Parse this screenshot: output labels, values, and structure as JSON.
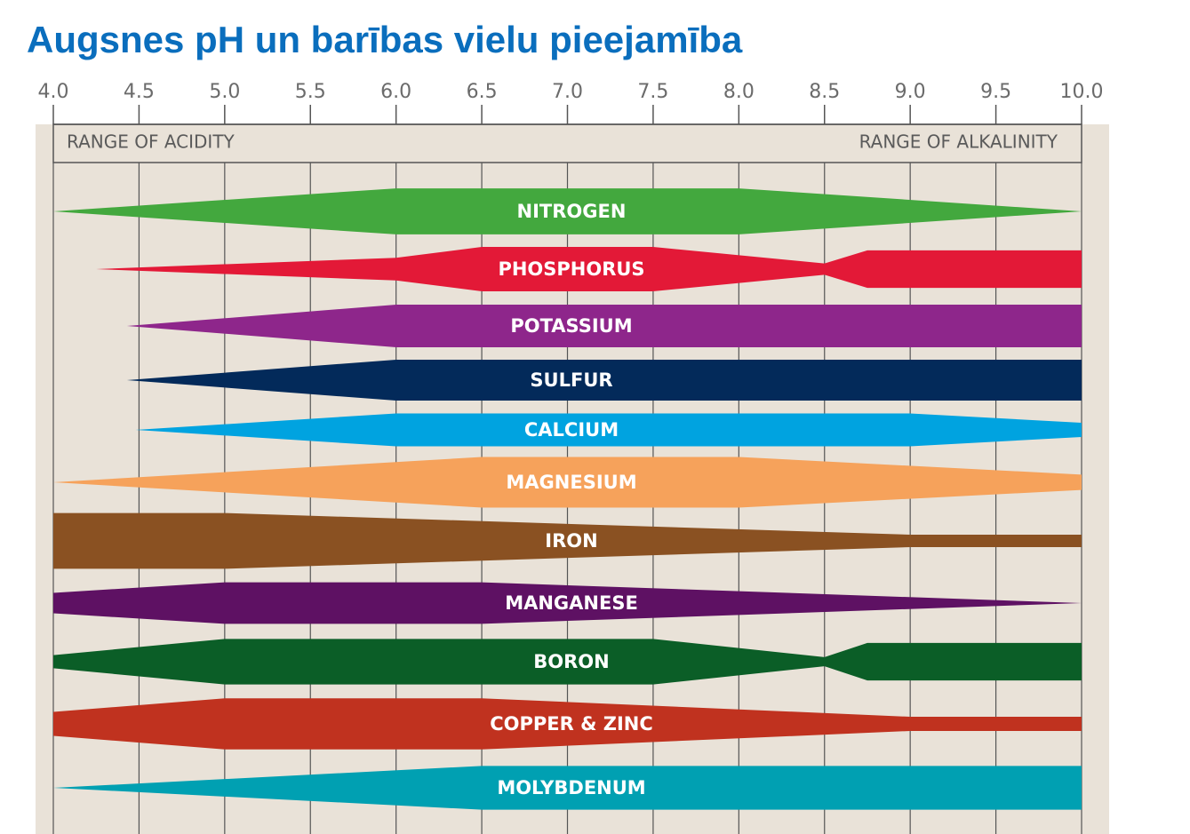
{
  "chart_data": {
    "type": "ph-availability",
    "title": "Augsnes pH un barības vielu pieejamība",
    "annotations": [
      "RANGE OF ACIDITY",
      "RANGE OF ALKALINITY"
    ],
    "xlim": [
      4,
      10
    ],
    "xticks": [
      {
        "value": 4,
        "label": "4.0"
      },
      4.5,
      {
        "value": 5,
        "label": "5.0"
      },
      5.5,
      {
        "value": 6,
        "label": "6.0"
      },
      6.5,
      {
        "value": 7,
        "label": "7.0"
      },
      7.5,
      {
        "value": 8,
        "label": "8.0"
      },
      8.5,
      {
        "value": 9,
        "label": "9.0"
      },
      9.5,
      {
        "value": 10,
        "label": "10.0"
      }
    ],
    "grid": true,
    "series": [
      {
        "name": "NITROGEN",
        "color": "#43a83e",
        "x": [
          4,
          6,
          8,
          10
        ],
        "values": [
          0,
          0.81,
          0.81,
          0
        ]
      },
      {
        "name": "PHOSPHORUS",
        "color": "#e31937",
        "x": [
          4.25,
          6,
          6.5,
          7.5,
          8.5,
          8.75,
          10
        ],
        "values": [
          0,
          0.4,
          0.78,
          0.78,
          0.2,
          0.66,
          0.66
        ]
      },
      {
        "name": "POTASSIUM",
        "color": "#8e268b",
        "x": [
          4.43,
          6,
          10
        ],
        "values": [
          0,
          0.75,
          0.75
        ]
      },
      {
        "name": "SULFUR",
        "color": "#032a5a",
        "x": [
          4.43,
          6,
          10
        ],
        "values": [
          0,
          0.72,
          0.72
        ]
      },
      {
        "name": "CALCIUM",
        "color": "#00a3e0",
        "x": [
          4.48,
          6,
          9,
          10
        ],
        "values": [
          0,
          0.58,
          0.58,
          0.25
        ]
      },
      {
        "name": "MAGNESIUM",
        "color": "#f6a25b",
        "x": [
          4,
          6.5,
          8,
          10
        ],
        "values": [
          0,
          0.89,
          0.89,
          0.27
        ]
      },
      {
        "name": "IRON",
        "color": "#8a5122",
        "x": [
          4,
          5,
          9,
          10
        ],
        "values": [
          0.98,
          0.98,
          0.22,
          0.22
        ]
      },
      {
        "name": "MANGANESE",
        "color": "#5e1163",
        "x": [
          4,
          5,
          6.5,
          10
        ],
        "values": [
          0.36,
          0.73,
          0.73,
          0
        ]
      },
      {
        "name": "BORON",
        "color": "#0b5e27",
        "x": [
          4,
          5,
          7.5,
          8.5,
          8.75,
          10
        ],
        "values": [
          0.23,
          0.8,
          0.8,
          0.16,
          0.66,
          0.66
        ]
      },
      {
        "name": "COPPER & ZINC",
        "color": "#c0321f",
        "x": [
          4,
          5,
          6.5,
          9,
          10
        ],
        "values": [
          0.42,
          0.9,
          0.9,
          0.25,
          0.25
        ]
      },
      {
        "name": "MOLYBDENUM",
        "color": "#00a0b2",
        "x": [
          4,
          6.5,
          10
        ],
        "values": [
          0,
          0.77,
          0.77
        ]
      }
    ]
  }
}
